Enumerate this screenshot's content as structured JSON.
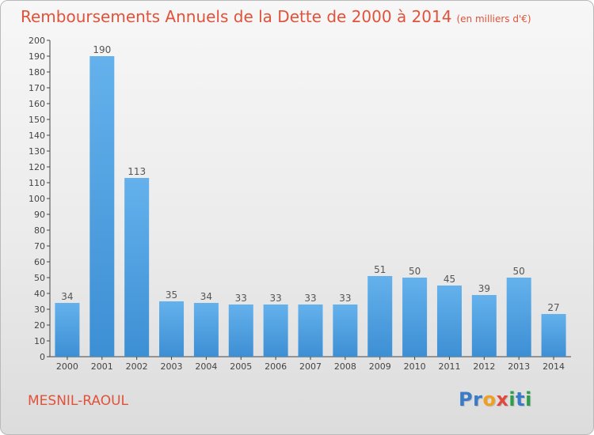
{
  "chart_data": {
    "type": "bar",
    "title": "Remboursements Annuels de la Dette de 2000 à 2014",
    "subtitle": "(en milliers d'€)",
    "xlabel": "",
    "ylabel": "",
    "categories": [
      "2000",
      "2001",
      "2002",
      "2003",
      "2004",
      "2005",
      "2006",
      "2007",
      "2008",
      "2009",
      "2010",
      "2011",
      "2012",
      "2013",
      "2014"
    ],
    "values": [
      34,
      190,
      113,
      35,
      34,
      33,
      33,
      33,
      33,
      51,
      50,
      45,
      39,
      50,
      27
    ],
    "ylim": [
      0,
      200
    ],
    "ytick_step": 10,
    "grid": false,
    "legend": "none",
    "bar_color": "#3d8fd4",
    "bar_color_light": "#64b1ec",
    "label_color": "#555555"
  },
  "footer": {
    "commune": "MESNIL-RAOUL",
    "logo": {
      "letters": [
        "P",
        "r",
        "o",
        "x",
        "i",
        "t",
        "i"
      ],
      "colors": [
        "#3a7bc8",
        "#3a7bc8",
        "#f0a020",
        "#e04a3c",
        "#2c9e4a",
        "#3a7bc8",
        "#2c9e4a"
      ]
    }
  }
}
